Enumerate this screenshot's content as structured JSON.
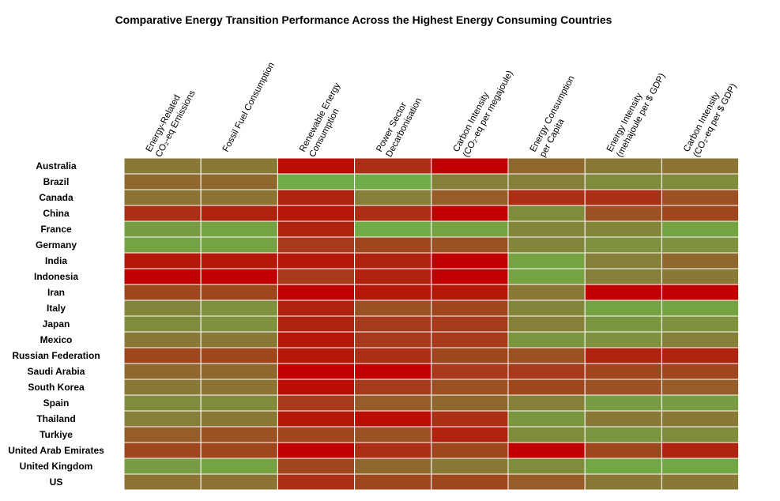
{
  "chart_data": {
    "type": "heatmap",
    "title": "Comparative Energy Transition Performance Across the Highest Energy Consuming Countries",
    "columns": [
      [
        "Energy-Related",
        "CO₂-eq Emissions"
      ],
      [
        "Fossil Fuel Consumption"
      ],
      [
        "Renewable Energy",
        "Consumption"
      ],
      [
        "Power Sector",
        "Decarbonisation"
      ],
      [
        "Carbon Intensity",
        "(CO₂-eq per megajoule)"
      ],
      [
        "Energy Consumption",
        "per Capita"
      ],
      [
        "Energy Intensity",
        "(mehajoule per $ GDP)"
      ],
      [
        "Carbon Intensity",
        "(CO₂-eq per $ GDP)"
      ]
    ],
    "rows": [
      "Australia",
      "Brazil",
      "Canada",
      "China",
      "France",
      "Germany",
      "India",
      "Indonesia",
      "Iran",
      "Italy",
      "Japan",
      "Mexico",
      "Russian Federation",
      "Saudi Arabia",
      "South Korea",
      "Spain",
      "Thailand",
      "Turkiye",
      "United Arab Emirates",
      "United Kingdom",
      "US"
    ],
    "values": [
      [
        0.55,
        0.55,
        0.05,
        0.2,
        0.0,
        0.45,
        0.55,
        0.5
      ],
      [
        0.45,
        0.45,
        1.0,
        1.0,
        0.6,
        0.6,
        0.7,
        0.7
      ],
      [
        0.5,
        0.5,
        0.15,
        0.6,
        0.4,
        0.2,
        0.2,
        0.35
      ],
      [
        0.2,
        0.15,
        0.1,
        0.2,
        0.0,
        0.7,
        0.35,
        0.3
      ],
      [
        0.85,
        0.9,
        0.15,
        1.0,
        0.9,
        0.65,
        0.65,
        0.9
      ],
      [
        0.9,
        0.9,
        0.25,
        0.3,
        0.35,
        0.65,
        0.75,
        0.75
      ],
      [
        0.1,
        0.1,
        0.1,
        0.15,
        0.0,
        0.9,
        0.6,
        0.45
      ],
      [
        0.0,
        0.0,
        0.25,
        0.15,
        0.0,
        0.9,
        0.6,
        0.55
      ],
      [
        0.3,
        0.3,
        0.0,
        0.1,
        0.1,
        0.55,
        0.0,
        0.0
      ],
      [
        0.65,
        0.75,
        0.15,
        0.35,
        0.3,
        0.65,
        0.9,
        0.9
      ],
      [
        0.7,
        0.75,
        0.15,
        0.25,
        0.25,
        0.6,
        0.8,
        0.75
      ],
      [
        0.55,
        0.55,
        0.1,
        0.25,
        0.25,
        0.8,
        0.75,
        0.6
      ],
      [
        0.3,
        0.3,
        0.1,
        0.2,
        0.3,
        0.35,
        0.15,
        0.15
      ],
      [
        0.45,
        0.45,
        0.0,
        0.0,
        0.25,
        0.25,
        0.3,
        0.3
      ],
      [
        0.55,
        0.5,
        0.05,
        0.25,
        0.35,
        0.3,
        0.35,
        0.4
      ],
      [
        0.7,
        0.7,
        0.25,
        0.4,
        0.45,
        0.6,
        0.85,
        0.85
      ],
      [
        0.6,
        0.55,
        0.1,
        0.05,
        0.2,
        0.8,
        0.55,
        0.55
      ],
      [
        0.4,
        0.35,
        0.3,
        0.35,
        0.15,
        0.7,
        0.8,
        0.7
      ],
      [
        0.3,
        0.3,
        0.0,
        0.2,
        0.3,
        0.0,
        0.3,
        0.15
      ],
      [
        0.85,
        0.9,
        0.3,
        0.45,
        0.55,
        0.7,
        0.95,
        0.95
      ],
      [
        0.5,
        0.5,
        0.2,
        0.3,
        0.3,
        0.4,
        0.55,
        0.55
      ]
    ],
    "color_scale": {
      "low": "#c00000",
      "mid": "#8b7434",
      "high": "#70ad47"
    },
    "grid_color": "#ffffff",
    "legend": "none"
  }
}
